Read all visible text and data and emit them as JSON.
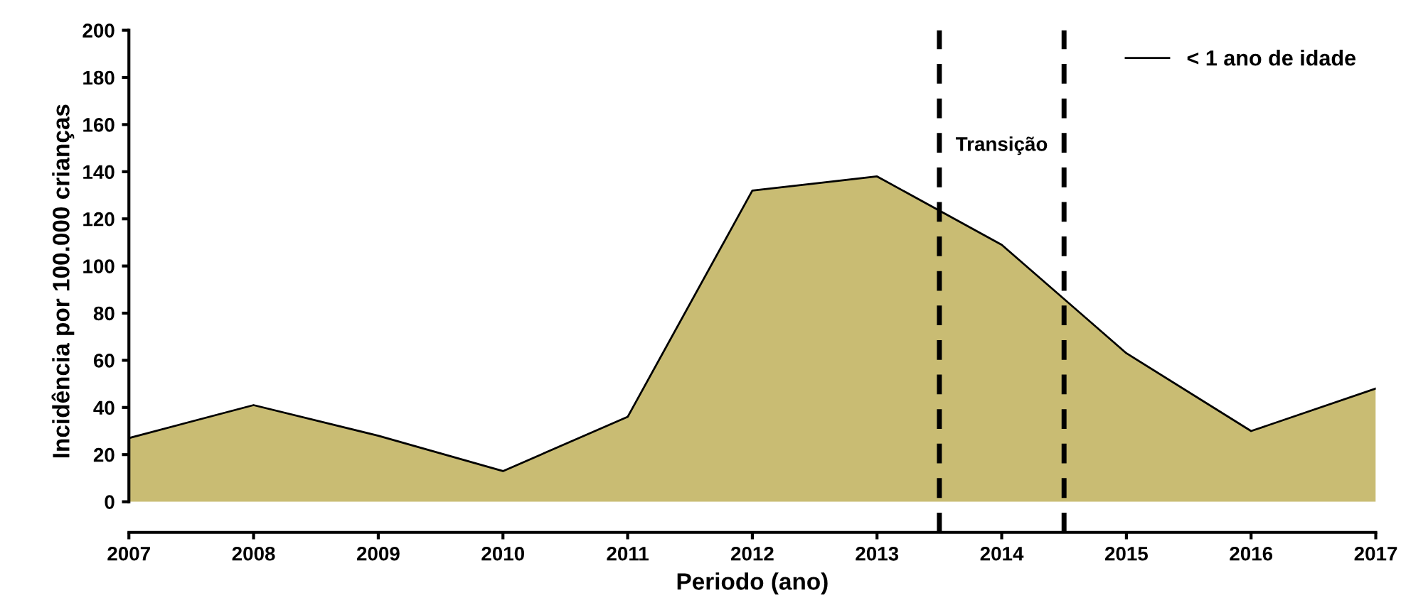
{
  "chart_data": {
    "type": "area",
    "xlabel": "Periodo (ano)",
    "ylabel": "Incidência por 100.000 crianças",
    "x": [
      2007,
      2008,
      2009,
      2010,
      2011,
      2012,
      2013,
      2014,
      2015,
      2016,
      2017
    ],
    "series": [
      {
        "name": "< 1 ano de idade",
        "color": "#c9bc73",
        "values": [
          27,
          41,
          28,
          13,
          36,
          132,
          138,
          109,
          63,
          30,
          48
        ]
      }
    ],
    "xlim": [
      2007,
      2017
    ],
    "xticks": [
      2007,
      2008,
      2009,
      2010,
      2011,
      2012,
      2013,
      2014,
      2015,
      2016,
      2017
    ],
    "ylim": [
      -13,
      200
    ],
    "yticks": [
      0,
      20,
      40,
      60,
      80,
      100,
      120,
      140,
      160,
      180,
      200
    ],
    "ref_lines": [
      {
        "axis": "x",
        "value": 2013.5,
        "color": "#000000",
        "line_style": "dashed"
      },
      {
        "axis": "x",
        "value": 2014.5,
        "color": "#000000",
        "line_style": "dashed"
      }
    ],
    "annotations": [
      "Transição"
    ],
    "grid": false,
    "legend": "top right"
  }
}
